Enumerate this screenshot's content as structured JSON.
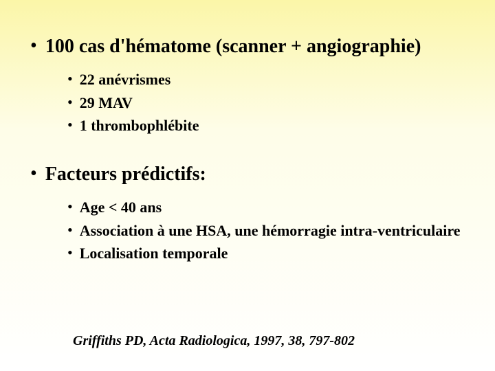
{
  "slide": {
    "background_gradient_top": "#fbf6a8",
    "background_gradient_bottom": "#ffffff",
    "text_color": "#000000",
    "font_family": "Times New Roman",
    "main_fontsize": 28,
    "sub_fontsize": 22,
    "citation_fontsize": 20,
    "bullet_char": "•",
    "sections": [
      {
        "heading": "100 cas d'hématome (scanner + angiographie)",
        "items": [
          "22 anévrismes",
          "29 MAV",
          "1 thrombophlébite"
        ]
      },
      {
        "heading": "Facteurs prédictifs:",
        "items": [
          "Age < 40 ans",
          "Association à une HSA, une hémorragie intra-ventriculaire",
          "Localisation temporale"
        ]
      }
    ],
    "citation": "Griffiths PD, Acta Radiologica, 1997, 38, 797-802"
  }
}
